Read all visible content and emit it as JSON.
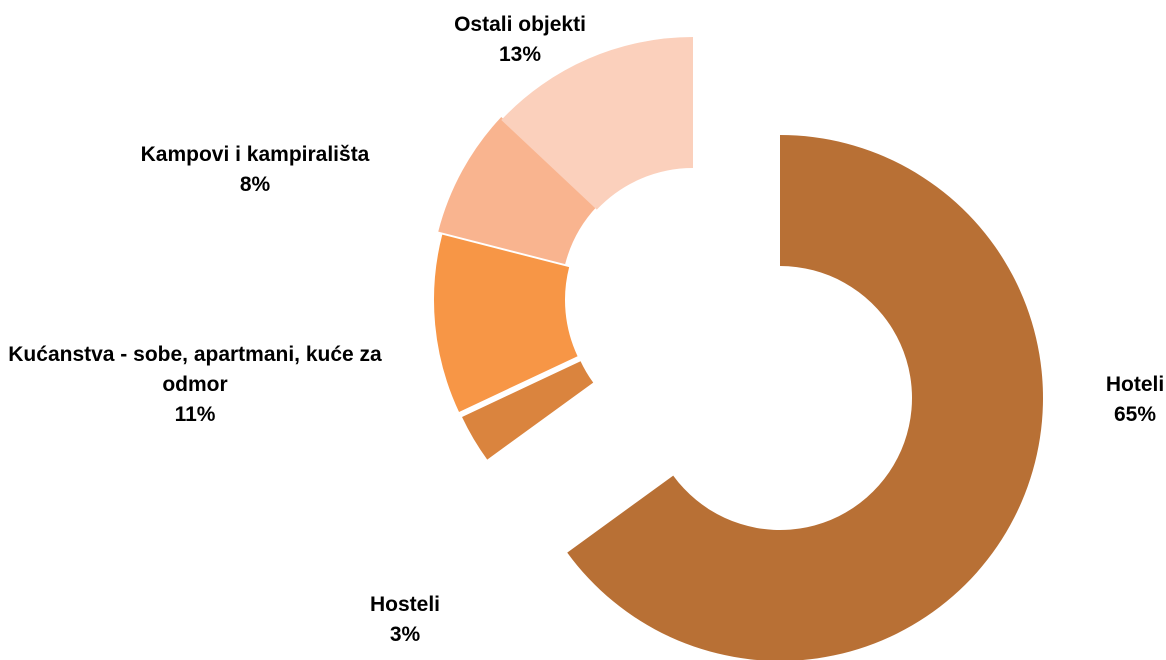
{
  "chart_data": {
    "type": "donut",
    "categories": [
      "Hoteli",
      "Hosteli",
      "Kućanstva - sobe, apartmani, kuće za odmor",
      "Kampovi i kampirališta",
      "Ostali objekti"
    ],
    "values": [
      65,
      3,
      11,
      8,
      13
    ],
    "value_labels": [
      "65%",
      "3%",
      "11%",
      "8%",
      "13%"
    ],
    "colors": [
      "#B87035",
      "#DA843E",
      "#F79646",
      "#F9B48F",
      "#FBD0BC"
    ]
  }
}
